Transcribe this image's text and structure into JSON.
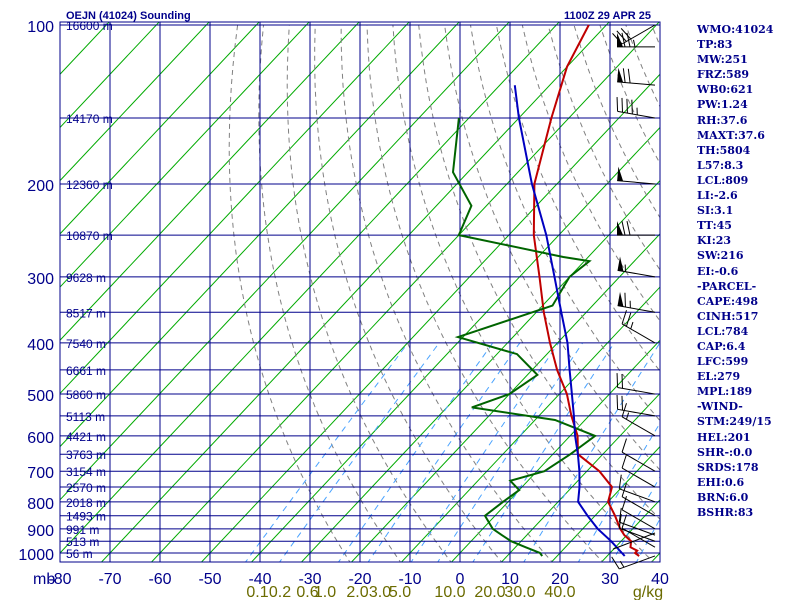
{
  "header": {
    "station_title": "OEJN (41024) Sounding",
    "time_label": "1100Z 29 APR 25"
  },
  "indices": [
    "WMO:41024",
    "TP:83",
    "MW:251",
    "FRZ:589",
    "WB0:621",
    "PW:1.24",
    "RH:37.6",
    "MAXT:37.6",
    "TH:5804",
    "L57:8.3",
    "LCL:809",
    "LI:-2.6",
    "SI:3.1",
    "TT:45",
    "KI:23",
    "SW:216",
    "EI:-0.6",
    "-PARCEL-",
    "CAPE:498",
    "CINH:517",
    "LCL:784",
    "CAP:6.4",
    "LFC:599",
    "EL:279",
    "MPL:189",
    "-WIND-",
    "STM:249/15",
    "HEL:201",
    "SHR-:0.0",
    "SRDS:178",
    "EHI:0.6",
    "BRN:6.0",
    "BSHR:83"
  ],
  "colors": {
    "grid": "#00008b",
    "isotherm": "#00aa00",
    "dry_adiabat": "#808080",
    "mixing_ratio": "#4aa3ff",
    "temperature": "#c00000",
    "dewpoint": "#006400",
    "parcel": "#0000c0",
    "axis_text": "#00008b",
    "mixing_text": "#6b6b00"
  },
  "chart_data": {
    "type": "line",
    "title": "OEJN (41024) Sounding",
    "x_axis": {
      "label": "",
      "unit_label": "mb",
      "ticks": [
        -80,
        -70,
        -60,
        -50,
        -40,
        -30,
        -20,
        -10,
        0,
        10,
        20,
        30,
        40
      ],
      "tick_labels": [
        "-80",
        "-70",
        "-60",
        "-50",
        "-40",
        "-30",
        "-20",
        "-10",
        "0",
        "10",
        "20",
        "30",
        "40"
      ],
      "range": [
        -80,
        40
      ]
    },
    "y_axis": {
      "scale": "log",
      "ticks": [
        100,
        200,
        300,
        400,
        500,
        600,
        700,
        800,
        900,
        1000
      ],
      "tick_labels": [
        "100",
        "200",
        "300",
        "400",
        "500",
        "600",
        "700",
        "800",
        "900",
        "1000"
      ],
      "range": [
        100,
        1000
      ]
    },
    "height_labels": [
      {
        "p": 100,
        "text": "16600 m"
      },
      {
        "p": 150,
        "text": "14170 m"
      },
      {
        "p": 200,
        "text": "12360 m"
      },
      {
        "p": 250,
        "text": "10870 m"
      },
      {
        "p": 300,
        "text": "9628 m"
      },
      {
        "p": 350,
        "text": "8517 m"
      },
      {
        "p": 400,
        "text": "7540 m"
      },
      {
        "p": 450,
        "text": "6661 m"
      },
      {
        "p": 500,
        "text": "5860 m"
      },
      {
        "p": 550,
        "text": "5113 m"
      },
      {
        "p": 600,
        "text": "4421 m"
      },
      {
        "p": 650,
        "text": "3763 m"
      },
      {
        "p": 700,
        "text": "3154 m"
      },
      {
        "p": 750,
        "text": "2570 m"
      },
      {
        "p": 800,
        "text": "2018 m"
      },
      {
        "p": 850,
        "text": "1493 m"
      },
      {
        "p": 900,
        "text": "991 m"
      },
      {
        "p": 950,
        "text": "513 m"
      },
      {
        "p": 1000,
        "text": "56 m"
      }
    ],
    "mixing_ratio_labels": [
      "0.1",
      "0.2",
      "0.6",
      "1.0",
      "2.0",
      "3.0",
      "5.0",
      "10.0",
      "20.0",
      "30.0",
      "40.0"
    ],
    "mixing_ratio_unit": "g/kg",
    "mixing_ratio_values": [
      0.1,
      0.2,
      0.6,
      1.0,
      2.0,
      3.0,
      5.0,
      10.0,
      20.0,
      30.0,
      40.0
    ],
    "mixing_ratio_label_temps": [
      -40.5,
      -36,
      -30.5,
      -27,
      -20.5,
      -16,
      -12,
      -2,
      6,
      12,
      20
    ],
    "series": [
      {
        "name": "Temperature",
        "points": [
          [
            1013,
            36.4
          ],
          [
            1000,
            35.0
          ],
          [
            990,
            35.0
          ],
          [
            975,
            33.0
          ],
          [
            950,
            32.0
          ],
          [
            925,
            29.5
          ],
          [
            900,
            27.5
          ],
          [
            850,
            24.0
          ],
          [
            800,
            20.0
          ],
          [
            750,
            18.0
          ],
          [
            700,
            12.5
          ],
          [
            650,
            5.0
          ],
          [
            600,
            1.5
          ],
          [
            550,
            -3.5
          ],
          [
            500,
            -8.5
          ],
          [
            450,
            -15.0
          ],
          [
            400,
            -21.5
          ],
          [
            350,
            -28.5
          ],
          [
            300,
            -36.0
          ],
          [
            250,
            -45.0
          ],
          [
            200,
            -54.5
          ],
          [
            150,
            -63.5
          ],
          [
            120,
            -70.0
          ],
          [
            100,
            -73.5
          ]
        ]
      },
      {
        "name": "Dewpoint",
        "points": [
          [
            1013,
            17.0
          ],
          [
            1000,
            16.0
          ],
          [
            975,
            12.0
          ],
          [
            950,
            8.0
          ],
          [
            925,
            5.0
          ],
          [
            900,
            2.0
          ],
          [
            850,
            -2.0
          ],
          [
            800,
            -1.0
          ],
          [
            760,
            0.0
          ],
          [
            730,
            -3.5
          ],
          [
            700,
            1.5
          ],
          [
            650,
            3.5
          ],
          [
            600,
            5.0
          ],
          [
            560,
            -6.0
          ],
          [
            530,
            -25.0
          ],
          [
            500,
            -20.0
          ],
          [
            460,
            -18.0
          ],
          [
            420,
            -26.0
          ],
          [
            390,
            -41.0
          ],
          [
            340,
            -28.0
          ],
          [
            300,
            -30.0
          ],
          [
            280,
            -29.0
          ],
          [
            275,
            -35.0
          ],
          [
            250,
            -60.0
          ],
          [
            220,
            -63.0
          ],
          [
            190,
            -73.0
          ],
          [
            150,
            -82.0
          ]
        ]
      },
      {
        "name": "Parcel",
        "points": [
          [
            1013,
            33.5
          ],
          [
            950,
            28.0
          ],
          [
            900,
            23.0
          ],
          [
            850,
            18.5
          ],
          [
            800,
            14.0
          ],
          [
            750,
            11.5
          ],
          [
            700,
            8.5
          ],
          [
            650,
            5.0
          ],
          [
            600,
            1.0
          ],
          [
            550,
            -3.0
          ],
          [
            500,
            -7.5
          ],
          [
            450,
            -12.5
          ],
          [
            400,
            -18.0
          ],
          [
            350,
            -25.0
          ],
          [
            300,
            -33.0
          ],
          [
            250,
            -42.5
          ],
          [
            200,
            -55.0
          ],
          [
            150,
            -70.0
          ],
          [
            130,
            -77.0
          ]
        ]
      }
    ],
    "wind_barbs": [
      {
        "p": 1013,
        "dir": 250,
        "spd": 15
      },
      {
        "p": 975,
        "dir": 300,
        "spd": 10
      },
      {
        "p": 950,
        "dir": 290,
        "spd": 10
      },
      {
        "p": 925,
        "dir": 290,
        "spd": 10
      },
      {
        "p": 900,
        "dir": 300,
        "spd": 10
      },
      {
        "p": 850,
        "dir": 300,
        "spd": 10
      },
      {
        "p": 800,
        "dir": 290,
        "spd": 10
      },
      {
        "p": 750,
        "dir": 300,
        "spd": 10
      },
      {
        "p": 700,
        "dir": 300,
        "spd": 10
      },
      {
        "p": 600,
        "dir": 300,
        "spd": 15
      },
      {
        "p": 550,
        "dir": 280,
        "spd": 20
      },
      {
        "p": 500,
        "dir": 280,
        "spd": 20
      },
      {
        "p": 400,
        "dir": 300,
        "spd": 25
      },
      {
        "p": 350,
        "dir": 280,
        "spd": 65
      },
      {
        "p": 300,
        "dir": 280,
        "spd": 55
      },
      {
        "p": 250,
        "dir": 270,
        "spd": 70
      },
      {
        "p": 200,
        "dir": 275,
        "spd": 50
      },
      {
        "p": 150,
        "dir": 280,
        "spd": 45
      },
      {
        "p": 130,
        "dir": 275,
        "spd": 70
      },
      {
        "p": 110,
        "dir": 270,
        "spd": 75
      },
      {
        "p": 100,
        "dir": 240,
        "spd": 30
      }
    ],
    "storm_motion": {
      "dir": 249,
      "spd": 15
    },
    "grid": true
  }
}
